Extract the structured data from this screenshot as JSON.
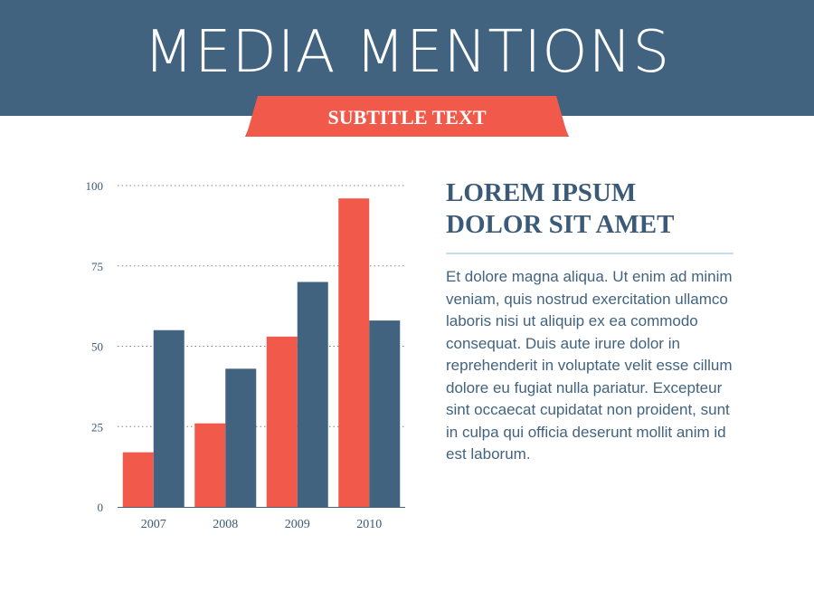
{
  "header": {
    "title": "MEDIA MENTIONS",
    "subtitle": "SUBTITLE TEXT"
  },
  "article": {
    "heading": "LOREM IPSUM DOLOR SIT AMET",
    "body": "Et dolore magna aliqua. Ut enim ad minim veniam, quis nostrud exercitation ullamco laboris nisi ut aliquip ex ea commodo consequat. Duis aute irure dolor in reprehenderit in voluptate velit esse cillum dolore eu fugiat nulla pariatur. Excepteur sint occaecat cupidatat non proident, sunt in culpa qui officia deserunt mollit anim id est laborum."
  },
  "colors": {
    "header_blue": "#42637f",
    "accent_red": "#f15a4a",
    "series_blue": "#42637f",
    "divider": "#c7dceb"
  },
  "chart_data": {
    "type": "bar",
    "title": "",
    "xlabel": "",
    "ylabel": "",
    "categories": [
      "2007",
      "2008",
      "2009",
      "2010"
    ],
    "series": [
      {
        "values": [
          17,
          26,
          53,
          96
        ],
        "color": "#f15a4a"
      },
      {
        "values": [
          55,
          43,
          70,
          58
        ],
        "color": "#42637f"
      }
    ],
    "ylim": [
      0,
      100
    ],
    "yticks": [
      0,
      25,
      50,
      75,
      100
    ],
    "grid": "horizontal dotted",
    "legend": "none"
  }
}
